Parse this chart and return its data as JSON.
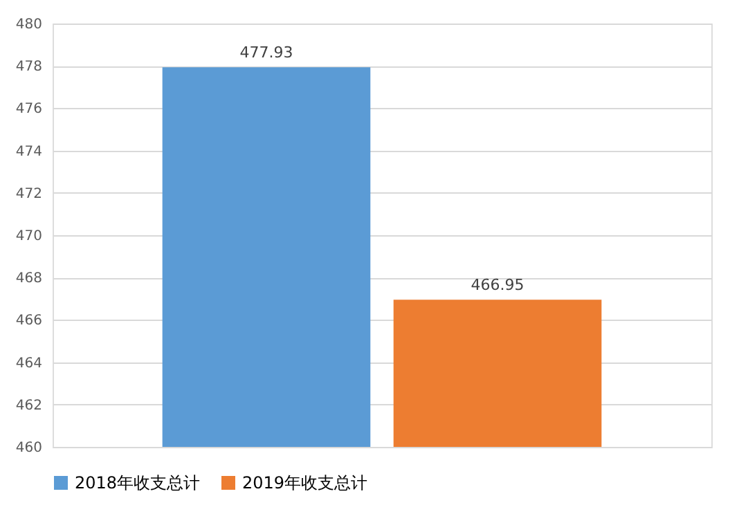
{
  "chart_data": {
    "type": "bar",
    "categories": [
      null
    ],
    "series": [
      {
        "name": "2018年收支总计",
        "color": "#5b9bd5",
        "values": [
          477.93
        ]
      },
      {
        "name": "2019年收支总计",
        "color": "#ed7d31",
        "values": [
          466.95
        ]
      }
    ],
    "ylim": [
      460,
      480
    ],
    "yticks": [
      460,
      462,
      464,
      466,
      468,
      470,
      472,
      474,
      476,
      478,
      480
    ],
    "grid": "y",
    "legend": "bottom",
    "data_labels": true
  }
}
